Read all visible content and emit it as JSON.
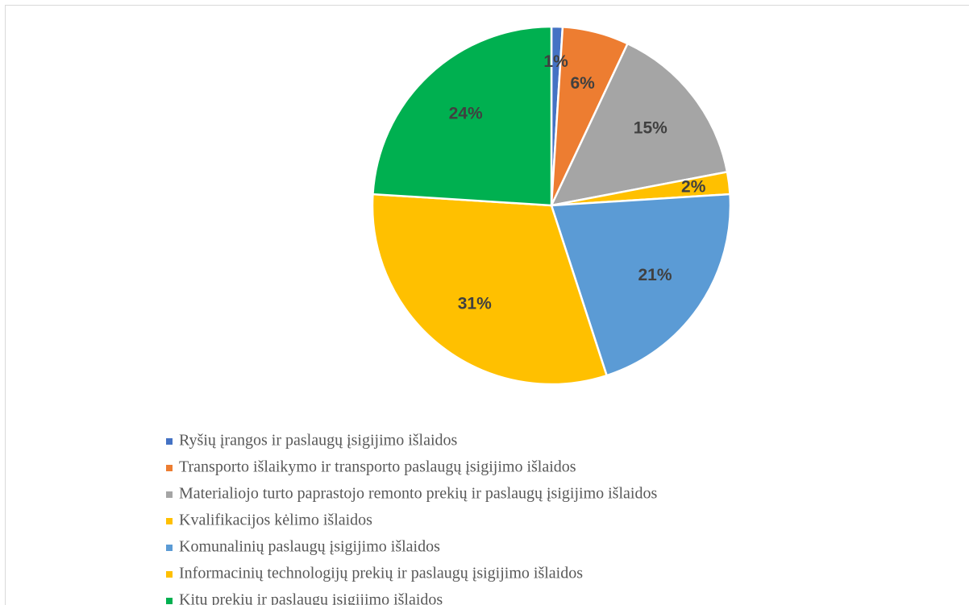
{
  "chart_data": {
    "type": "pie",
    "categories": [
      "Ryšių įrangos ir paslaugų įsigijimo išlaidos",
      "Transporto išlaikymo ir transporto paslaugų įsigijimo išlaidos",
      "Materialiojo turto paprastojo remonto prekių ir paslaugų įsigijimo išlaidos",
      "Kvalifikacijos kėlimo išlaidos",
      "Komunalinių paslaugų įsigijimo išlaidos",
      "Informacinių technologijų prekių ir paslaugų įsigijimo išlaidos",
      "Kitų prekių ir paslaugų įsigijimo išlaidos"
    ],
    "values": [
      1,
      6,
      15,
      2,
      21,
      31,
      24
    ],
    "value_labels": [
      "1%",
      "6%",
      "15%",
      "2%",
      "21%",
      "31%",
      "24%"
    ],
    "colors": [
      "#4472c4",
      "#ed7d31",
      "#a5a5a5",
      "#ffc000",
      "#5b9bd5",
      "#ffc000",
      "#00b050"
    ],
    "legend": "bottom"
  }
}
